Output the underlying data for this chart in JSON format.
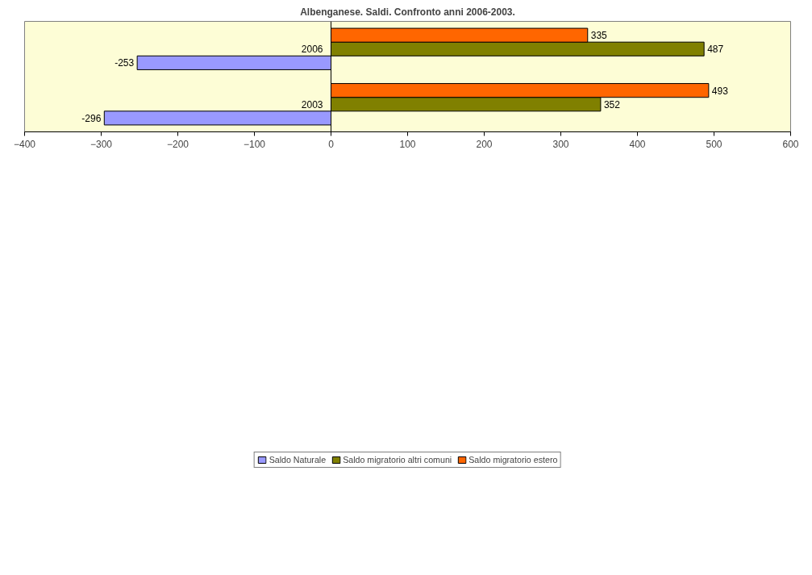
{
  "chart_data": {
    "type": "bar",
    "orientation": "horizontal",
    "title": "Albenganese. Saldi. Confronto anni 2006-2003.",
    "categories": [
      "2006",
      "2003"
    ],
    "series": [
      {
        "name": "Saldo Naturale",
        "color": "#9999ff",
        "values": [
          -253,
          -296
        ]
      },
      {
        "name": "Saldo migratorio altri comuni",
        "color": "#808000",
        "values": [
          487,
          352
        ]
      },
      {
        "name": "Saldo migratorio estero",
        "color": "#ff6600",
        "values": [
          335,
          493
        ]
      }
    ],
    "xlim": [
      -400,
      600
    ],
    "xticks": [
      -400,
      -300,
      -200,
      -100,
      0,
      100,
      200,
      300,
      400,
      500,
      600
    ],
    "data_labels": true,
    "legend": "bottom",
    "grid": false
  }
}
